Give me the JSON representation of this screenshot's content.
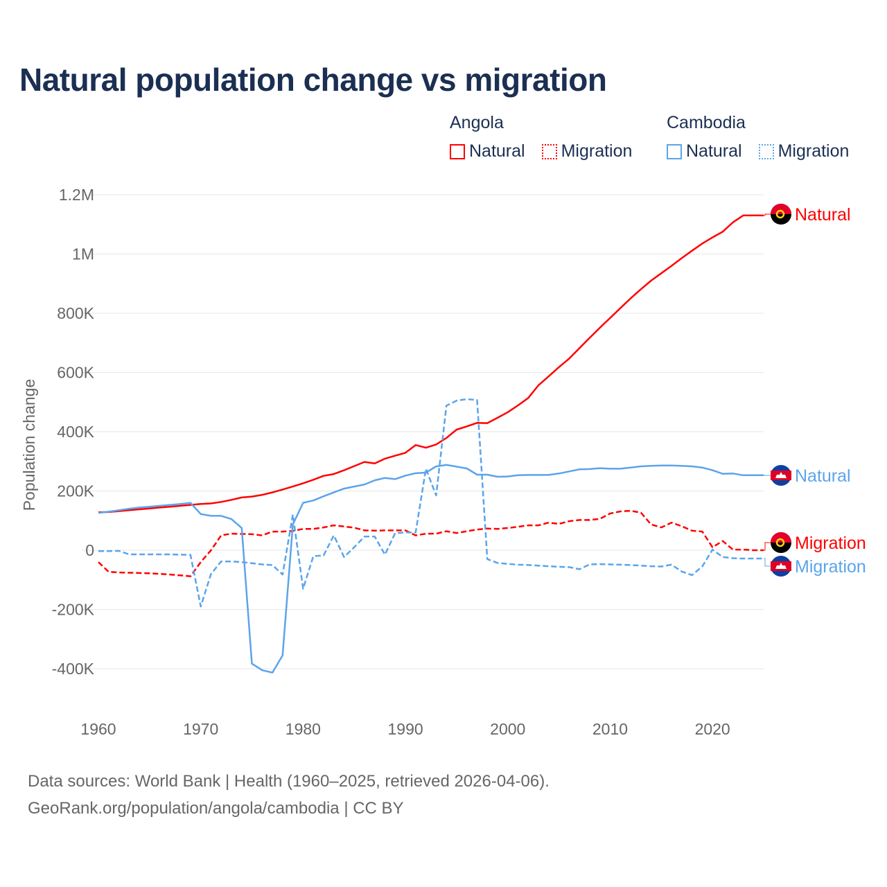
{
  "title": "Natural population change vs migration",
  "legend": {
    "groups": [
      {
        "country": "Angola",
        "items": [
          {
            "label": "Natural",
            "style": "solid"
          },
          {
            "label": "Migration",
            "style": "dotted"
          }
        ]
      },
      {
        "country": "Cambodia",
        "items": [
          {
            "label": "Natural",
            "style": "solid"
          },
          {
            "label": "Migration",
            "style": "dotted"
          }
        ]
      }
    ]
  },
  "colors": {
    "angola": "#ff0000",
    "cambodia": "#5ba4ea",
    "grid": "#e6e6e6"
  },
  "footer": {
    "line1": "Data sources: World Bank | Health (1960–2025, retrieved 2026-04-06).",
    "line2": "GeoRank.org/population/angola/cambodia | CC BY"
  },
  "chart_data": {
    "type": "line",
    "title": "Natural population change vs migration",
    "xlabel": "",
    "ylabel": "Population change",
    "xlim": [
      1960,
      2025
    ],
    "ylim": [
      -500000,
      1200000
    ],
    "x_ticks": [
      1960,
      1970,
      1980,
      1990,
      2000,
      2010,
      2020
    ],
    "x_tick_labels": [
      "1960",
      "1970",
      "1980",
      "1990",
      "2000",
      "2010",
      "2020"
    ],
    "y_ticks": [
      -400000,
      -200000,
      0,
      200000,
      400000,
      600000,
      800000,
      1000000,
      1200000
    ],
    "y_tick_labels": [
      "-400K",
      "-200K",
      "0",
      "200K",
      "400K",
      "600K",
      "800K",
      "1M",
      "1.2M"
    ],
    "grid": true,
    "x_start": 1960,
    "series": [
      {
        "name": "Angola Natural",
        "end_label": "Natural",
        "country": "angola",
        "dashed": false,
        "values_k": [
          128,
          129,
          132,
          135,
          138,
          141,
          144,
          147,
          150,
          153,
          156,
          158,
          163,
          170,
          178,
          181,
          187,
          195,
          205,
          215,
          226,
          238,
          251,
          257,
          270,
          284,
          298,
          293,
          309,
          319,
          329,
          355,
          346,
          357,
          379,
          407,
          418,
          430,
          429,
          447,
          466,
          489,
          514,
          557,
          587,
          618,
          647,
          682,
          717,
          751,
          784,
          817,
          850,
          881,
          910,
          935,
          960,
          986,
          1011,
          1035,
          1056,
          1075,
          1107,
          1130,
          1130
        ]
      },
      {
        "name": "Angola Migration",
        "end_label": "Migration",
        "country": "angola",
        "dashed": true,
        "values_k": [
          -40,
          -73,
          -75,
          -76,
          -77,
          -78,
          -80,
          -82,
          -85,
          -88,
          -40,
          0,
          50,
          56,
          55,
          54,
          50,
          63,
          63,
          65,
          72,
          72,
          77,
          84,
          80,
          76,
          67,
          66,
          67,
          67,
          67,
          50,
          56,
          56,
          64,
          58,
          64,
          70,
          73,
          72,
          75,
          79,
          84,
          84,
          93,
          89,
          98,
          102,
          102,
          106,
          124,
          131,
          133,
          127,
          87,
          77,
          93,
          81,
          66,
          63,
          10,
          31,
          2,
          2,
          0
        ]
      },
      {
        "name": "Cambodia Natural",
        "end_label": "Natural",
        "country": "cambodia",
        "dashed": false,
        "values_k": [
          126,
          130,
          135,
          140,
          144,
          147,
          150,
          153,
          156,
          160,
          122,
          116,
          116,
          105,
          75,
          -383,
          -405,
          -413,
          -355,
          87,
          160,
          168,
          182,
          195,
          208,
          215,
          222,
          236,
          244,
          240,
          252,
          260,
          262,
          283,
          288,
          282,
          276,
          255,
          255,
          248,
          249,
          253,
          254,
          254,
          254,
          259,
          266,
          273,
          274,
          277,
          275,
          275,
          279,
          283,
          285,
          286,
          286,
          285,
          283,
          279,
          270,
          258,
          259,
          253,
          253
        ]
      },
      {
        "name": "Cambodia Migration",
        "end_label": "Migration",
        "country": "cambodia",
        "dashed": true,
        "values_k": [
          -3,
          -3,
          -2,
          -14,
          -14,
          -14,
          -14,
          -14,
          -15,
          -16,
          -190,
          -80,
          -38,
          -38,
          -40,
          -44,
          -48,
          -50,
          -82,
          120,
          -130,
          -20,
          -18,
          50,
          -23,
          10,
          46,
          46,
          -15,
          58,
          60,
          60,
          275,
          185,
          488,
          505,
          510,
          507,
          -30,
          -43,
          -46,
          -49,
          -50,
          -52,
          -54,
          -56,
          -57,
          -64,
          -48,
          -47,
          -48,
          -49,
          -50,
          -52,
          -54,
          -55,
          -49,
          -72,
          -84,
          -55,
          2,
          -23,
          -27,
          -28,
          -28
        ]
      }
    ]
  }
}
